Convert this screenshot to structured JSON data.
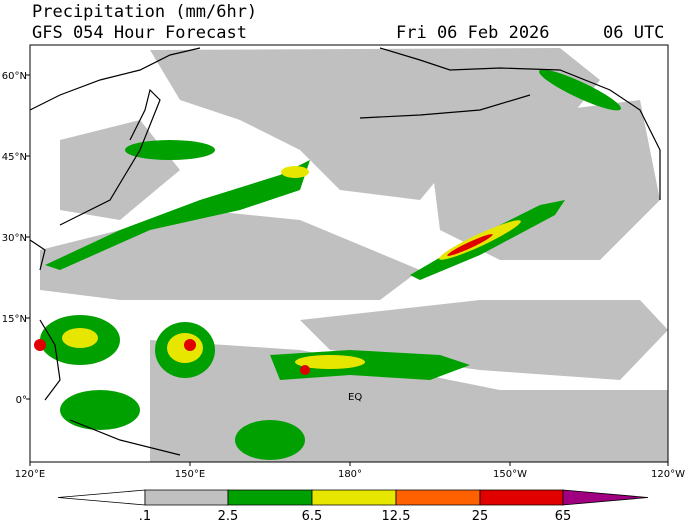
{
  "header": {
    "title": "Precipitation (mm/6hr)",
    "subtitle": "GFS 054 Hour Forecast",
    "date": "Fri 06 Feb 2026",
    "time": "06 UTC"
  },
  "map": {
    "lat_labels": [
      "60°N",
      "45°N",
      "30°N",
      "15°N",
      "0°"
    ],
    "lon_labels": [
      "120°E",
      "150°E",
      "180°",
      "150°W",
      "120°W"
    ],
    "annotations": [
      "EQ"
    ]
  },
  "legend": {
    "labels": [
      ".1",
      "2.5",
      "6.5",
      "12.5",
      "25",
      "65"
    ],
    "colors": [
      "#ffffff",
      "#c0c0c0",
      "#00a000",
      "#e6e600",
      "#ff6000",
      "#e00000",
      "#a00080"
    ]
  }
}
